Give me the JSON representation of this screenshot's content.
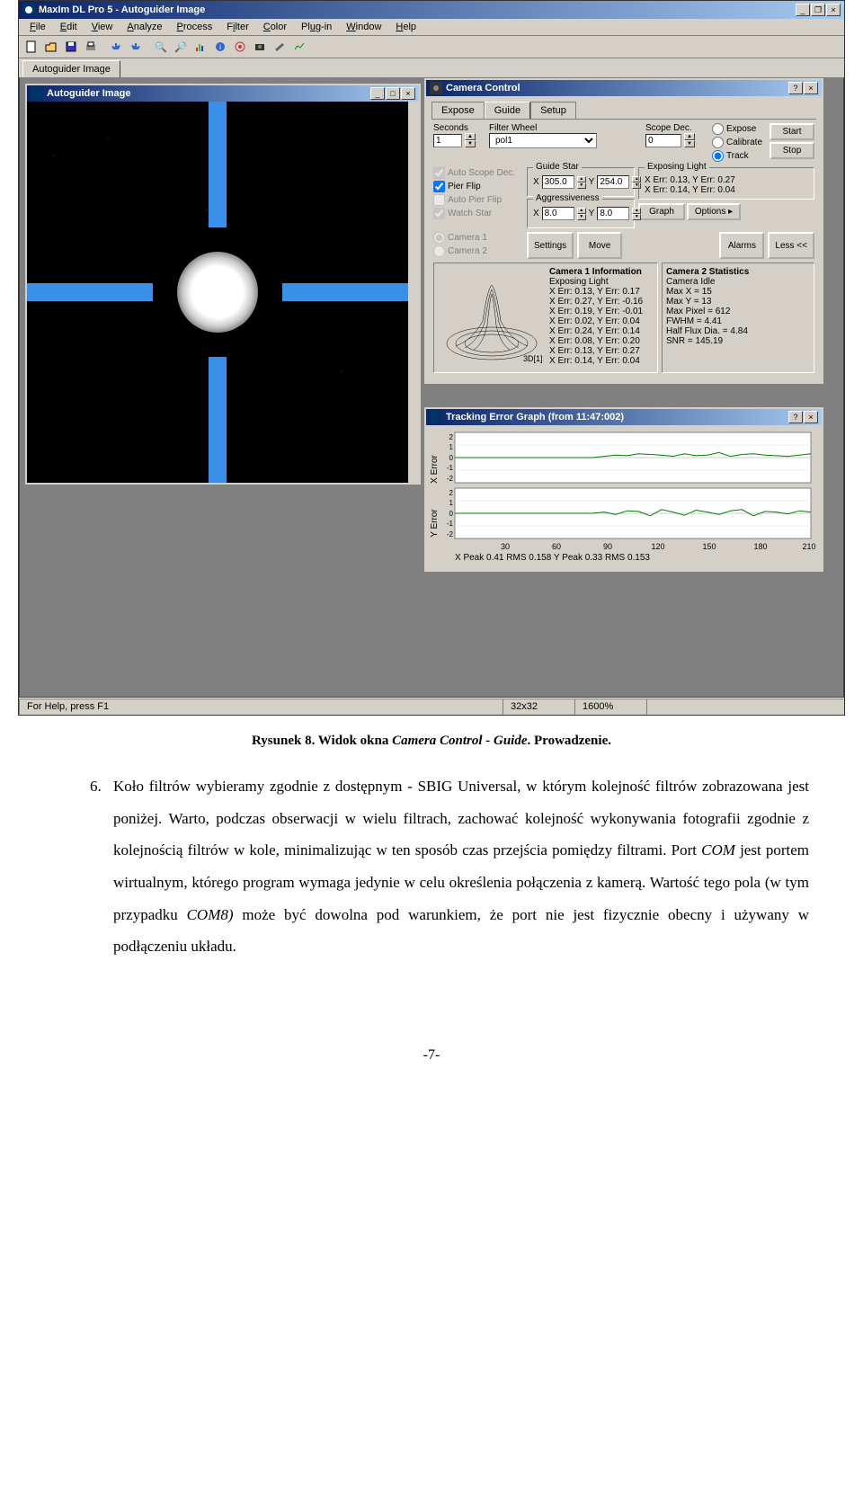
{
  "app": {
    "title": "MaxIm DL Pro 5 - Autoguider Image",
    "menu": [
      "File",
      "Edit",
      "View",
      "Analyze",
      "Process",
      "Filter",
      "Color",
      "Plug-in",
      "Window",
      "Help"
    ],
    "mainTab": "Autoguider Image",
    "statusbar": {
      "help": "For Help, press F1",
      "dims": "32x32",
      "zoom": "1600%"
    }
  },
  "autoguider": {
    "title": "Autoguider Image"
  },
  "cameraControl": {
    "title": "Camera Control",
    "tabs": [
      "Expose",
      "Guide",
      "Setup"
    ],
    "activeTab": "Guide",
    "seconds": {
      "label": "Seconds",
      "value": "1"
    },
    "filterWheel": {
      "label": "Filter Wheel",
      "value": "pol1"
    },
    "scopeDec": {
      "label": "Scope Dec.",
      "value": "0"
    },
    "modes": {
      "expose": "Expose",
      "calibrate": "Calibrate",
      "track": "Track",
      "selected": "track"
    },
    "buttons": {
      "start": "Start",
      "stop": "Stop",
      "graph": "Graph",
      "options": "Options ▸",
      "settings": "Settings",
      "move": "Move",
      "alarms": "Alarms",
      "less": "Less <<"
    },
    "checks": {
      "autoScopeDec": {
        "label": "Auto Scope Dec.",
        "checked": true,
        "disabled": true
      },
      "pierFlip": {
        "label": "Pier Flip",
        "checked": true
      },
      "autoPierFlip": {
        "label": "Auto Pier Flip",
        "checked": false,
        "disabled": true
      },
      "watchStar": {
        "label": "Watch Star",
        "checked": true,
        "disabled": true
      }
    },
    "camSel": {
      "cam1": "Camera 1",
      "cam2": "Camera 2",
      "selected": "cam1"
    },
    "guideStar": {
      "label": "Guide Star",
      "x": "305.0",
      "y": "254.0"
    },
    "aggressiveness": {
      "label": "Aggressiveness",
      "x": "8.0",
      "y": "8.0"
    },
    "exposingLight": {
      "title": "Exposing Light",
      "line1": "X Err: 0.13, Y Err: 0.27",
      "line2": "X Err: 0.14, Y Err: 0.04"
    },
    "cam1info": {
      "title": "Camera 1 Information",
      "lines": [
        "Exposing Light",
        "X Err: 0.13, Y Err: 0.17",
        "X Err: 0.27, Y Err: -0.16",
        "X Err: 0.19, Y Err: -0.01",
        "X Err: 0.02, Y Err: 0.04",
        "X Err: 0.24, Y Err: 0.14",
        "X Err: 0.08, Y Err: 0.20",
        "X Err: 0.13, Y Err: 0.27",
        "X Err: 0.14, Y Err: 0.04"
      ],
      "graphLabel": "3D[1]"
    },
    "cam2stats": {
      "title": "Camera 2 Statistics",
      "lines": [
        "Camera Idle",
        "Max X = 15",
        "Max Y = 13",
        "Max Pixel = 612",
        "FWHM = 4.41",
        "Half Flux Dia. = 4.84",
        "SNR = 145.19"
      ]
    }
  },
  "trackingGraph": {
    "title": "Tracking Error Graph (from 11:47:002)",
    "yLabels": {
      "x": "X Error",
      "y": "Y Error"
    },
    "ticks": [
      "2",
      "1",
      "0",
      "-1",
      "-2"
    ],
    "xTicks": [
      "30",
      "60",
      "90",
      "120",
      "150",
      "180",
      "210"
    ],
    "footer": "X Peak 0.41  RMS 0.158    Y Peak 0.33   RMS 0.153",
    "xSeries": [
      0,
      0,
      0,
      0,
      0,
      0,
      0,
      0,
      0,
      0,
      0,
      0,
      0,
      0.1,
      0.2,
      0.15,
      0.3,
      0.25,
      0.2,
      0.1,
      0.3,
      0.15,
      0.2,
      0.4,
      0.1,
      0.25,
      0.3,
      0.2,
      0.15,
      0.1,
      0.2,
      0.3
    ],
    "ySeries": [
      0,
      0,
      0,
      0,
      0,
      0,
      0,
      0,
      0,
      0,
      0,
      0,
      0,
      0.1,
      -0.1,
      0.2,
      0.15,
      -0.2,
      0.3,
      0.1,
      -0.15,
      0.25,
      0.1,
      -0.1,
      0.2,
      0.3,
      -0.2,
      0.15,
      0.1,
      -0.05,
      0.2,
      0.1
    ]
  },
  "caption": {
    "label": "Rysunek 8. Widok okna ",
    "italic": "Camera Control - Guide",
    "tail": ". Prowadzenie."
  },
  "bodyText": {
    "num": "6.",
    "text": "Koło filtrów wybieramy zgodnie z dostępnym - SBIG Universal, w którym kolejność filtrów zobrazowana jest poniżej. Warto, podczas obserwacji w wielu filtrach, zachować kolejność wykonywania fotografii zgodnie z kolejnością filtrów w kole, minimalizując w ten sposób czas przejścia pomiędzy filtrami. Port ",
    "italic1": "COM",
    "text2": " jest portem wirtualnym, którego program wymaga jedynie w celu określenia połączenia z kamerą. Wartość tego pola (w tym przypadku  ",
    "italic2": "COM8)",
    "text3": " może być dowolna pod warunkiem, że port nie jest fizycznie obecny i używany w podłączeniu układu."
  },
  "pageNum": "-7-",
  "colors": {
    "titlebarStart": "#0a246a",
    "titlebarEnd": "#a6caf0",
    "uiBg": "#d4d0c8",
    "crosshair": "#3890e8",
    "graphLine": "#008000"
  }
}
